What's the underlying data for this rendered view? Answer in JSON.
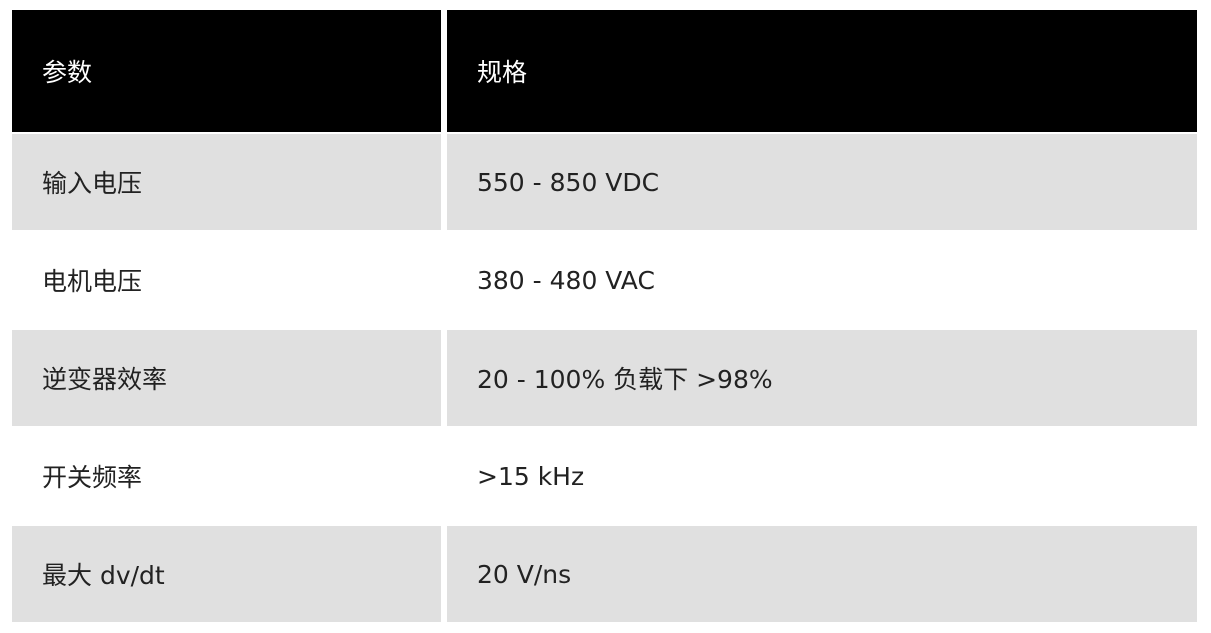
{
  "table": {
    "headers": [
      "参数",
      "规格"
    ],
    "rows": [
      [
        "输入电压",
        "550 - 850 VDC"
      ],
      [
        "电机电压",
        "380 - 480 VAC"
      ],
      [
        "逆变器效率",
        "20 - 100% 负载下 >98%"
      ],
      [
        "开关频率",
        ">15 kHz"
      ],
      [
        "最大 dv/dt",
        "20 V/ns"
      ]
    ]
  },
  "colors": {
    "header_bg": "#000000",
    "stripe_bg": "#e0e0e0"
  }
}
